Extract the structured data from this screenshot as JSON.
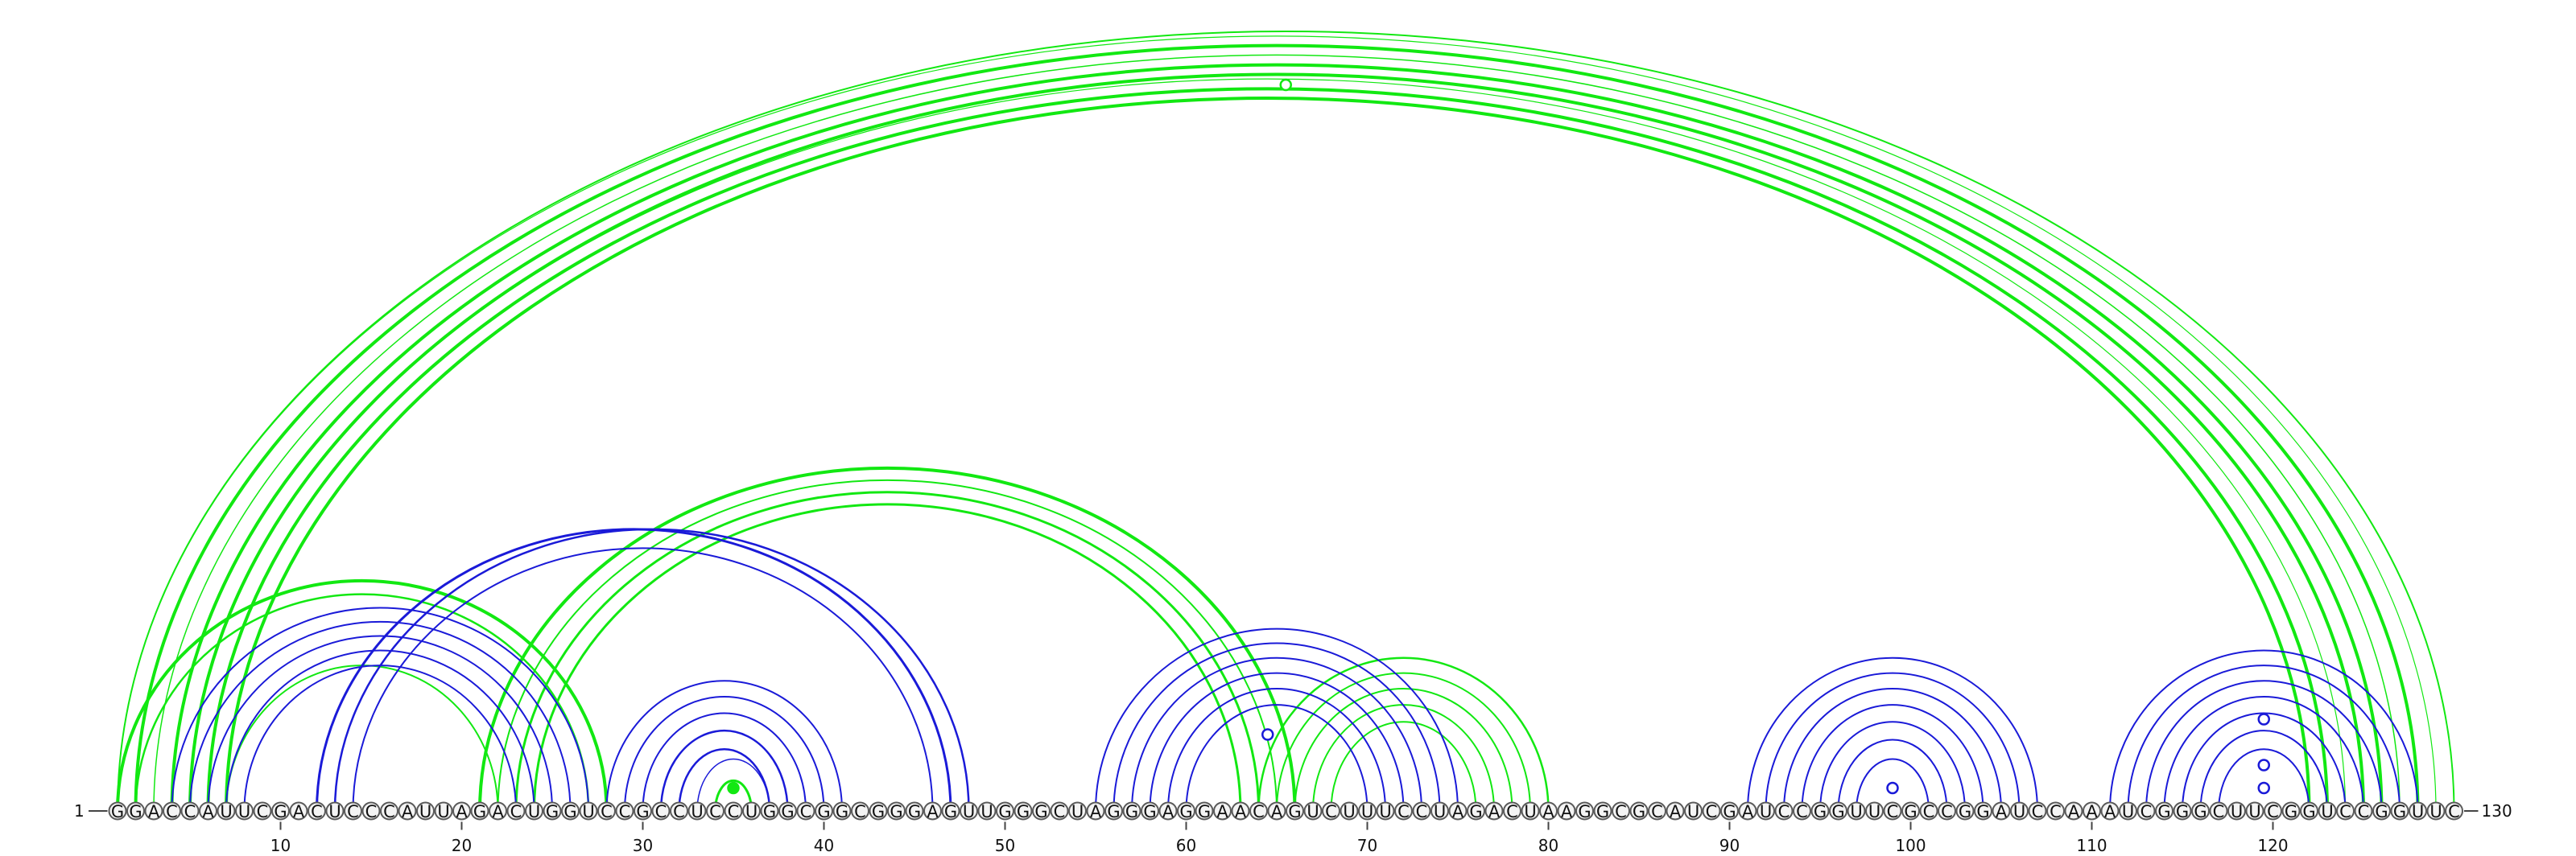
{
  "sequence": "GGACCAUUCGACUCCCAUUAGACUGGUCCGCCUCCUGGCGGCGGGAGUUGGGCUAGGGAGGAACAGUCUUUCCUAGACUAAGGCGCAUCGAUCCGGUUCGCCGGAUCCAAAUCGGGCUUCGGUCCGGUUC",
  "start_label": "1",
  "end_label": "130",
  "ticks": [
    "10",
    "20",
    "30",
    "40",
    "50",
    "60",
    "70",
    "80",
    "90",
    "100",
    "110",
    "120"
  ],
  "colors": {
    "green": "#12e812",
    "blue": "#1a1ad8"
  },
  "arcs": {
    "green": [
      [
        1,
        130,
        2
      ],
      [
        1,
        129,
        1.2
      ],
      [
        2,
        128,
        4
      ],
      [
        3,
        127,
        1.5
      ],
      [
        4,
        126,
        4
      ],
      [
        5,
        125,
        4
      ],
      [
        5,
        124,
        1.2
      ],
      [
        6,
        123,
        4
      ],
      [
        7,
        122,
        4
      ],
      [
        1,
        28,
        4
      ],
      [
        2,
        27,
        2.5
      ],
      [
        7,
        22,
        2
      ],
      [
        21,
        66,
        4
      ],
      [
        22,
        65,
        2
      ],
      [
        23,
        64,
        3
      ],
      [
        24,
        63,
        3
      ],
      [
        34,
        36,
        3
      ],
      [
        64,
        80,
        2.5
      ],
      [
        65,
        79,
        2
      ],
      [
        66,
        78,
        2
      ],
      [
        67,
        77,
        2
      ],
      [
        68,
        76,
        2
      ]
    ],
    "blue": [
      [
        4,
        27,
        2
      ],
      [
        5,
        26,
        2
      ],
      [
        6,
        25,
        2
      ],
      [
        7,
        24,
        2
      ],
      [
        8,
        23,
        2
      ],
      [
        13,
        48,
        2.5
      ],
      [
        12,
        47,
        3
      ],
      [
        14,
        46,
        2
      ],
      [
        28,
        41,
        2
      ],
      [
        29,
        40,
        2
      ],
      [
        30,
        39,
        2
      ],
      [
        31,
        38,
        2.5
      ],
      [
        32,
        37,
        2.5
      ],
      [
        33,
        37,
        1.5
      ],
      [
        55,
        75,
        2
      ],
      [
        56,
        74,
        2
      ],
      [
        57,
        73,
        2
      ],
      [
        58,
        72,
        2
      ],
      [
        59,
        71,
        2
      ],
      [
        60,
        70,
        2
      ],
      [
        91,
        107,
        2
      ],
      [
        92,
        106,
        2
      ],
      [
        93,
        105,
        2
      ],
      [
        94,
        104,
        2
      ],
      [
        95,
        103,
        2
      ],
      [
        96,
        102,
        2
      ],
      [
        97,
        101,
        2
      ],
      [
        111,
        128,
        2
      ],
      [
        112,
        127,
        2
      ],
      [
        113,
        126,
        2
      ],
      [
        114,
        125,
        2
      ],
      [
        115,
        124,
        2
      ],
      [
        116,
        123,
        2
      ],
      [
        117,
        122,
        2
      ]
    ]
  },
  "markers": [
    {
      "color": "green",
      "x": 65.5,
      "y": 0.95,
      "filled": false
    },
    {
      "color": "green",
      "x": 35.0,
      "y": 0.03,
      "filled": true
    },
    {
      "color": "blue",
      "x": 64.5,
      "y": 0.1,
      "filled": false
    },
    {
      "color": "blue",
      "x": 99.0,
      "y": 0.03,
      "filled": false
    },
    {
      "color": "blue",
      "x": 119.5,
      "y": 0.12,
      "filled": false
    },
    {
      "color": "blue",
      "x": 119.5,
      "y": 0.06,
      "filled": false
    },
    {
      "color": "blue",
      "x": 119.5,
      "y": 0.03,
      "filled": false
    }
  ]
}
